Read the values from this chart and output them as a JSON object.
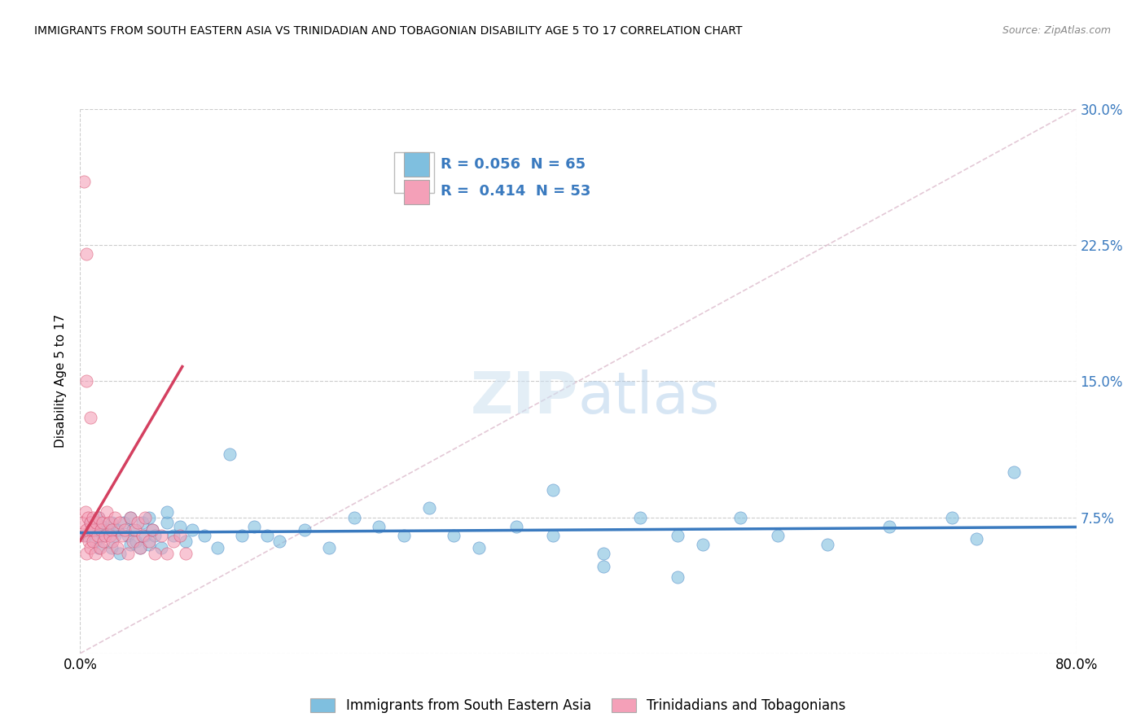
{
  "title": "IMMIGRANTS FROM SOUTH EASTERN ASIA VS TRINIDADIAN AND TOBAGONIAN DISABILITY AGE 5 TO 17 CORRELATION CHART",
  "source": "Source: ZipAtlas.com",
  "ylabel": "Disability Age 5 to 17",
  "xlim": [
    0.0,
    0.8
  ],
  "ylim": [
    0.0,
    0.3
  ],
  "xticks": [
    0.0,
    0.8
  ],
  "xtick_labels": [
    "0.0%",
    "80.0%"
  ],
  "yticks": [
    0.0,
    0.075,
    0.15,
    0.225,
    0.3
  ],
  "ytick_labels_right": [
    "",
    "7.5%",
    "15.0%",
    "22.5%",
    "30.0%"
  ],
  "legend_label_1": "Immigrants from South Eastern Asia",
  "legend_label_2": "Trinidadians and Tobagonians",
  "R1": 0.056,
  "N1": 65,
  "R2": 0.414,
  "N2": 53,
  "color1": "#7fbfdf",
  "color2": "#f4a0b8",
  "trendline1_color": "#3a7abf",
  "trendline2_color": "#d44060",
  "watermark_color": "#d0e8f5",
  "background_color": "#ffffff",
  "grid_color": "#cccccc",
  "scatter1_x": [
    0.005,
    0.008,
    0.01,
    0.012,
    0.015,
    0.015,
    0.018,
    0.02,
    0.022,
    0.025,
    0.025,
    0.028,
    0.03,
    0.032,
    0.035,
    0.038,
    0.04,
    0.04,
    0.042,
    0.045,
    0.048,
    0.05,
    0.052,
    0.055,
    0.055,
    0.058,
    0.06,
    0.065,
    0.07,
    0.07,
    0.075,
    0.08,
    0.085,
    0.09,
    0.1,
    0.11,
    0.12,
    0.13,
    0.14,
    0.15,
    0.16,
    0.18,
    0.2,
    0.22,
    0.24,
    0.26,
    0.28,
    0.3,
    0.32,
    0.35,
    0.38,
    0.42,
    0.45,
    0.48,
    0.5,
    0.53,
    0.56,
    0.6,
    0.65,
    0.7,
    0.72,
    0.75,
    0.38,
    0.42,
    0.48
  ],
  "scatter1_y": [
    0.065,
    0.072,
    0.068,
    0.062,
    0.075,
    0.058,
    0.07,
    0.065,
    0.068,
    0.072,
    0.058,
    0.065,
    0.068,
    0.055,
    0.072,
    0.065,
    0.06,
    0.075,
    0.068,
    0.062,
    0.058,
    0.072,
    0.065,
    0.06,
    0.075,
    0.068,
    0.065,
    0.058,
    0.072,
    0.078,
    0.065,
    0.07,
    0.062,
    0.068,
    0.065,
    0.058,
    0.11,
    0.065,
    0.07,
    0.065,
    0.062,
    0.068,
    0.058,
    0.075,
    0.07,
    0.065,
    0.08,
    0.065,
    0.058,
    0.07,
    0.065,
    0.055,
    0.075,
    0.065,
    0.06,
    0.075,
    0.065,
    0.06,
    0.07,
    0.075,
    0.063,
    0.1,
    0.09,
    0.048,
    0.042
  ],
  "scatter2_x": [
    0.002,
    0.003,
    0.004,
    0.005,
    0.005,
    0.006,
    0.007,
    0.008,
    0.008,
    0.009,
    0.01,
    0.01,
    0.011,
    0.012,
    0.013,
    0.014,
    0.015,
    0.016,
    0.017,
    0.018,
    0.019,
    0.02,
    0.021,
    0.022,
    0.023,
    0.024,
    0.025,
    0.026,
    0.028,
    0.03,
    0.032,
    0.034,
    0.036,
    0.038,
    0.04,
    0.042,
    0.044,
    0.046,
    0.048,
    0.05,
    0.052,
    0.055,
    0.058,
    0.06,
    0.065,
    0.07,
    0.075,
    0.08,
    0.085,
    0.003,
    0.005,
    0.005,
    0.008
  ],
  "scatter2_y": [
    0.072,
    0.065,
    0.078,
    0.068,
    0.055,
    0.075,
    0.062,
    0.072,
    0.058,
    0.068,
    0.075,
    0.062,
    0.068,
    0.055,
    0.072,
    0.065,
    0.075,
    0.058,
    0.068,
    0.072,
    0.062,
    0.065,
    0.078,
    0.055,
    0.072,
    0.065,
    0.068,
    0.062,
    0.075,
    0.058,
    0.072,
    0.065,
    0.068,
    0.055,
    0.075,
    0.062,
    0.068,
    0.072,
    0.058,
    0.065,
    0.075,
    0.062,
    0.068,
    0.055,
    0.065,
    0.055,
    0.062,
    0.065,
    0.055,
    0.26,
    0.22,
    0.15,
    0.13
  ]
}
